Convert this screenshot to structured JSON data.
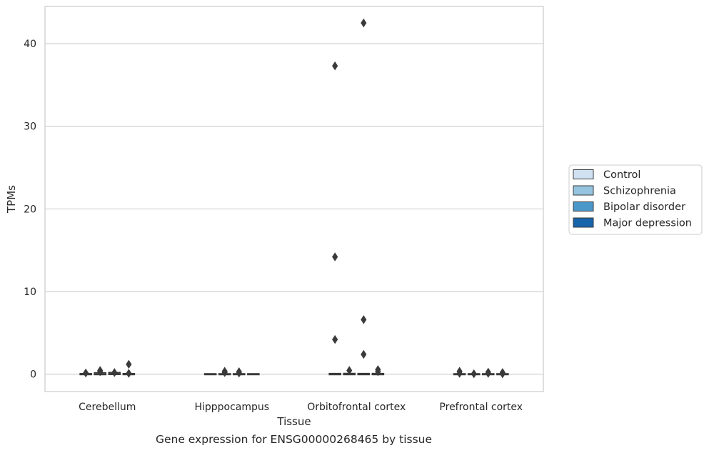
{
  "chart_data": {
    "type": "box",
    "title": "",
    "caption": "Gene expression for ENSG00000268465 by tissue",
    "xlabel": "Tissue",
    "ylabel": "TPMs",
    "ylim": [
      -2.1,
      44.5
    ],
    "yticks": [
      0,
      10,
      20,
      30,
      40
    ],
    "grid": "horizontal",
    "legend_position": "center-right",
    "categories": [
      "Cerebellum",
      "Hipppocampus",
      "Orbitofrontal cortex",
      "Prefrontal cortex"
    ],
    "series": [
      {
        "name": "Control",
        "color": "#d0e1f2",
        "boxes": [
          {
            "category": "Cerebellum",
            "q1": 0.0,
            "median": 0.0,
            "q3": 0.02,
            "whisker_low": 0.0,
            "whisker_high": 0.05,
            "outliers": [
              0.15
            ]
          },
          {
            "category": "Hipppocampus",
            "q1": 0.0,
            "median": 0.0,
            "q3": 0.0,
            "whisker_low": 0.0,
            "whisker_high": 0.0,
            "outliers": []
          },
          {
            "category": "Orbitofrontal cortex",
            "q1": 0.0,
            "median": 0.0,
            "q3": 0.03,
            "whisker_low": 0.0,
            "whisker_high": 0.05,
            "outliers": [
              37.3,
              14.2,
              4.2
            ]
          },
          {
            "category": "Prefrontal cortex",
            "q1": 0.0,
            "median": 0.0,
            "q3": 0.0,
            "whisker_low": 0.0,
            "whisker_high": 0.0,
            "outliers": [
              0.35,
              0.1
            ]
          }
        ]
      },
      {
        "name": "Schizophrenia",
        "color": "#94c4df",
        "boxes": [
          {
            "category": "Cerebellum",
            "q1": 0.0,
            "median": 0.05,
            "q3": 0.12,
            "whisker_low": 0.0,
            "whisker_high": 0.2,
            "outliers": [
              0.45,
              0.3
            ]
          },
          {
            "category": "Hipppocampus",
            "q1": 0.0,
            "median": 0.0,
            "q3": 0.0,
            "whisker_low": 0.0,
            "whisker_high": 0.0,
            "outliers": [
              0.35,
              0.2
            ]
          },
          {
            "category": "Orbitofrontal cortex",
            "q1": 0.0,
            "median": 0.0,
            "q3": 0.04,
            "whisker_low": 0.0,
            "whisker_high": 0.1,
            "outliers": [
              0.45
            ]
          },
          {
            "category": "Prefrontal cortex",
            "q1": 0.0,
            "median": 0.0,
            "q3": 0.0,
            "whisker_low": 0.0,
            "whisker_high": 0.0,
            "outliers": [
              0.05
            ]
          }
        ]
      },
      {
        "name": "Bipolar disorder",
        "color": "#4a98c9",
        "boxes": [
          {
            "category": "Cerebellum",
            "q1": 0.02,
            "median": 0.08,
            "q3": 0.15,
            "whisker_low": 0.0,
            "whisker_high": 0.25,
            "outliers": [
              0.2
            ]
          },
          {
            "category": "Hipppocampus",
            "q1": 0.0,
            "median": 0.0,
            "q3": 0.0,
            "whisker_low": 0.0,
            "whisker_high": 0.0,
            "outliers": [
              0.3,
              0.15
            ]
          },
          {
            "category": "Orbitofrontal cortex",
            "q1": 0.0,
            "median": 0.0,
            "q3": 0.03,
            "whisker_low": 0.0,
            "whisker_high": 0.05,
            "outliers": [
              42.5,
              6.6,
              2.4
            ]
          },
          {
            "category": "Prefrontal cortex",
            "q1": 0.0,
            "median": 0.0,
            "q3": 0.0,
            "whisker_low": 0.0,
            "whisker_high": 0.0,
            "outliers": [
              0.25,
              0.1
            ]
          }
        ]
      },
      {
        "name": "Major depression",
        "color": "#1764ab",
        "boxes": [
          {
            "category": "Cerebellum",
            "q1": 0.0,
            "median": 0.0,
            "q3": 0.02,
            "whisker_low": 0.0,
            "whisker_high": 0.05,
            "outliers": [
              1.2,
              0.1
            ]
          },
          {
            "category": "Hipppocampus",
            "q1": 0.0,
            "median": 0.0,
            "q3": 0.0,
            "whisker_low": 0.0,
            "whisker_high": 0.0,
            "outliers": []
          },
          {
            "category": "Orbitofrontal cortex",
            "q1": 0.0,
            "median": 0.0,
            "q3": 0.03,
            "whisker_low": 0.0,
            "whisker_high": 0.1,
            "outliers": [
              0.55,
              0.3
            ]
          },
          {
            "category": "Prefrontal cortex",
            "q1": 0.0,
            "median": 0.0,
            "q3": 0.0,
            "whisker_low": 0.0,
            "whisker_high": 0.0,
            "outliers": [
              0.2,
              0.05
            ]
          }
        ]
      }
    ]
  }
}
